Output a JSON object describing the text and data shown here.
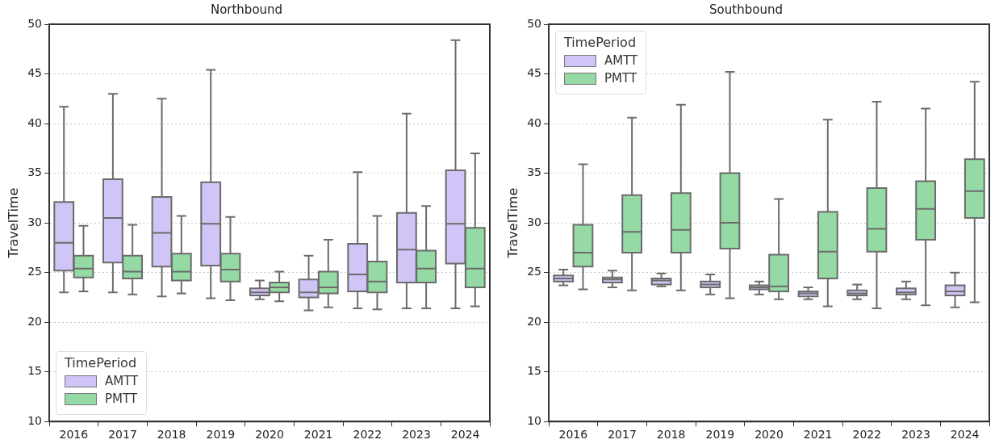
{
  "chart_data": [
    {
      "type": "box",
      "title": "Northbound",
      "ylabel": "TravelTime",
      "categories": [
        "2016",
        "2017",
        "2018",
        "2019",
        "2020",
        "2021",
        "2022",
        "2023",
        "2024"
      ],
      "ylim": [
        10,
        50
      ],
      "yticks": [
        10,
        15,
        20,
        25,
        30,
        35,
        40,
        45,
        50
      ],
      "grid": "y",
      "legend": "bottom left",
      "legend_title": "TimePeriod",
      "series": [
        {
          "name": "AMTT",
          "color": "#d1c4f6",
          "boxes": [
            {
              "low": 23.0,
              "q1": 25.2,
              "median": 28.0,
              "q3": 32.1,
              "high": 41.7
            },
            {
              "low": 23.0,
              "q1": 26.0,
              "median": 30.5,
              "q3": 34.4,
              "high": 43.0
            },
            {
              "low": 22.6,
              "q1": 25.6,
              "median": 29.0,
              "q3": 32.6,
              "high": 42.5
            },
            {
              "low": 22.4,
              "q1": 25.7,
              "median": 29.9,
              "q3": 34.1,
              "high": 45.4
            },
            {
              "low": 22.3,
              "q1": 22.7,
              "median": 23.0,
              "q3": 23.4,
              "high": 24.2
            },
            {
              "low": 21.2,
              "q1": 22.5,
              "median": 23.0,
              "q3": 24.3,
              "high": 26.7
            },
            {
              "low": 21.4,
              "q1": 23.1,
              "median": 24.8,
              "q3": 27.9,
              "high": 35.1
            },
            {
              "low": 21.4,
              "q1": 24.0,
              "median": 27.3,
              "q3": 31.0,
              "high": 41.0
            },
            {
              "low": 21.4,
              "q1": 25.9,
              "median": 29.9,
              "q3": 35.3,
              "high": 48.4
            }
          ]
        },
        {
          "name": "PMTT",
          "color": "#95daa5",
          "boxes": [
            {
              "low": 23.1,
              "q1": 24.5,
              "median": 25.4,
              "q3": 26.7,
              "high": 29.7
            },
            {
              "low": 22.8,
              "q1": 24.4,
              "median": 25.1,
              "q3": 26.7,
              "high": 29.8
            },
            {
              "low": 22.9,
              "q1": 24.2,
              "median": 25.1,
              "q3": 26.9,
              "high": 30.7
            },
            {
              "low": 22.2,
              "q1": 24.1,
              "median": 25.3,
              "q3": 26.9,
              "high": 30.6
            },
            {
              "low": 22.1,
              "q1": 23.0,
              "median": 23.5,
              "q3": 24.0,
              "high": 25.1
            },
            {
              "low": 21.5,
              "q1": 22.9,
              "median": 23.5,
              "q3": 25.1,
              "high": 28.3
            },
            {
              "low": 21.3,
              "q1": 23.0,
              "median": 24.1,
              "q3": 26.1,
              "high": 30.7
            },
            {
              "low": 21.4,
              "q1": 24.0,
              "median": 25.4,
              "q3": 27.2,
              "high": 31.7
            },
            {
              "low": 21.6,
              "q1": 23.5,
              "median": 25.4,
              "q3": 29.5,
              "high": 37.0
            }
          ]
        }
      ]
    },
    {
      "type": "box",
      "title": "Southbound",
      "ylabel": "TravelTime",
      "categories": [
        "2016",
        "2017",
        "2018",
        "2019",
        "2020",
        "2021",
        "2022",
        "2023",
        "2024"
      ],
      "ylim": [
        10,
        50
      ],
      "yticks": [
        10,
        15,
        20,
        25,
        30,
        35,
        40,
        45,
        50
      ],
      "grid": "y",
      "legend": "top left",
      "legend_title": "TimePeriod",
      "series": [
        {
          "name": "AMTT",
          "color": "#d1c4f6",
          "boxes": [
            {
              "low": 23.7,
              "q1": 24.1,
              "median": 24.4,
              "q3": 24.7,
              "high": 25.3
            },
            {
              "low": 23.5,
              "q1": 24.0,
              "median": 24.3,
              "q3": 24.5,
              "high": 25.2
            },
            {
              "low": 23.6,
              "q1": 23.8,
              "median": 24.2,
              "q3": 24.4,
              "high": 24.9
            },
            {
              "low": 22.8,
              "q1": 23.5,
              "median": 23.8,
              "q3": 24.1,
              "high": 24.8
            },
            {
              "low": 22.8,
              "q1": 23.3,
              "median": 23.5,
              "q3": 23.7,
              "high": 24.1
            },
            {
              "low": 22.3,
              "q1": 22.6,
              "median": 22.9,
              "q3": 23.1,
              "high": 23.5
            },
            {
              "low": 22.3,
              "q1": 22.7,
              "median": 22.9,
              "q3": 23.2,
              "high": 23.8
            },
            {
              "low": 22.3,
              "q1": 22.8,
              "median": 23.0,
              "q3": 23.4,
              "high": 24.1
            },
            {
              "low": 21.5,
              "q1": 22.7,
              "median": 23.1,
              "q3": 23.7,
              "high": 25.0
            }
          ]
        },
        {
          "name": "PMTT",
          "color": "#95daa5",
          "boxes": [
            {
              "low": 23.3,
              "q1": 25.6,
              "median": 27.0,
              "q3": 29.8,
              "high": 35.9
            },
            {
              "low": 23.2,
              "q1": 27.0,
              "median": 29.1,
              "q3": 32.8,
              "high": 40.6
            },
            {
              "low": 23.2,
              "q1": 27.0,
              "median": 29.3,
              "q3": 33.0,
              "high": 41.9
            },
            {
              "low": 22.4,
              "q1": 27.4,
              "median": 30.0,
              "q3": 35.0,
              "high": 45.2
            },
            {
              "low": 22.3,
              "q1": 23.1,
              "median": 23.6,
              "q3": 26.8,
              "high": 32.4
            },
            {
              "low": 21.6,
              "q1": 24.4,
              "median": 27.1,
              "q3": 31.1,
              "high": 40.4
            },
            {
              "low": 21.4,
              "q1": 27.1,
              "median": 29.4,
              "q3": 33.5,
              "high": 42.2
            },
            {
              "low": 21.7,
              "q1": 28.3,
              "median": 31.4,
              "q3": 34.2,
              "high": 41.5
            },
            {
              "low": 22.0,
              "q1": 30.5,
              "median": 33.2,
              "q3": 36.4,
              "high": 44.2
            }
          ]
        }
      ]
    }
  ]
}
